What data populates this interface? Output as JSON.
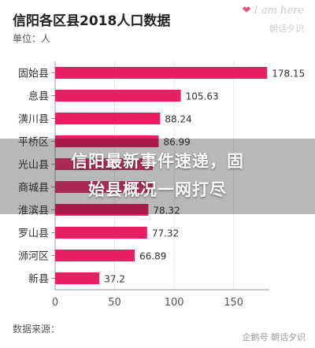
{
  "header": {
    "title": "信阳各区县2018人口数据",
    "unit": "单位：人"
  },
  "footer": {
    "source": "数据来源："
  },
  "watermarks": {
    "top_script": "I am here",
    "top_cn": "朝话夕识",
    "bottom": "企鹅号 朝话夕识"
  },
  "headline": {
    "line1": "信阳最新事件速递，固",
    "line2": "始县概况一网打尽"
  },
  "colors": {
    "bar": "#e91e63",
    "grid": "#e6e6e6",
    "axis": "#999999",
    "overlay": "#000000"
  },
  "chart_data": {
    "type": "bar",
    "orientation": "horizontal",
    "title": "信阳各区县2018人口数据",
    "categories": [
      "固始县",
      "息县",
      "潢川县",
      "平桥区",
      "光山县",
      "商城县",
      "淮滨县",
      "罗山县",
      "浉河区",
      "新县"
    ],
    "values": [
      178.15,
      105.63,
      88.24,
      86.99,
      null,
      null,
      78.32,
      77.32,
      66.89,
      37.2
    ],
    "value_labels": [
      "178.15",
      "105.63",
      "88.24",
      "86.99",
      "",
      "",
      "78.32",
      "77.32",
      "66.89",
      "37.2"
    ],
    "xlim": [
      0,
      180
    ],
    "xticks": [
      "0",
      "50",
      "100",
      "150"
    ],
    "xtick_values": [
      0,
      50,
      100,
      150
    ],
    "grid": true,
    "unit": "单位：人"
  }
}
